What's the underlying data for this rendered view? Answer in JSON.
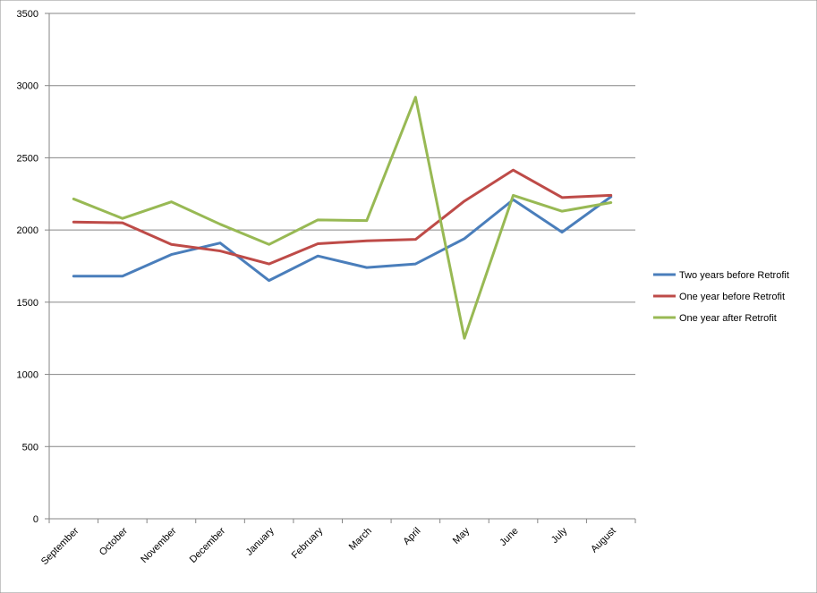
{
  "chart_data": {
    "type": "line",
    "categories": [
      "September",
      "October",
      "November",
      "December",
      "January",
      "February",
      "March",
      "April",
      "May",
      "June",
      "July",
      "August"
    ],
    "series": [
      {
        "name": "Two years before Retrofit",
        "color": "#4a7ebb",
        "values": [
          1680,
          1680,
          1830,
          1910,
          1650,
          1820,
          1740,
          1765,
          1940,
          2210,
          1985,
          2230
        ]
      },
      {
        "name": "One year before Retrofit",
        "color": "#be4b48",
        "values": [
          2055,
          2050,
          1900,
          1855,
          1765,
          1905,
          1925,
          1935,
          2200,
          2415,
          2225,
          2240
        ]
      },
      {
        "name": "One year after Retrofit",
        "color": "#98b954",
        "values": [
          2215,
          2080,
          2195,
          2040,
          1900,
          2070,
          2065,
          2920,
          1250,
          2240,
          2130,
          2190
        ]
      }
    ],
    "yticks": [
      "0",
      "500",
      "1000",
      "1500",
      "2000",
      "2500",
      "3000",
      "3500"
    ],
    "ylim": [
      0,
      3500
    ],
    "grid": true,
    "legend_position": "right",
    "title": "",
    "xlabel": "",
    "ylabel": ""
  }
}
